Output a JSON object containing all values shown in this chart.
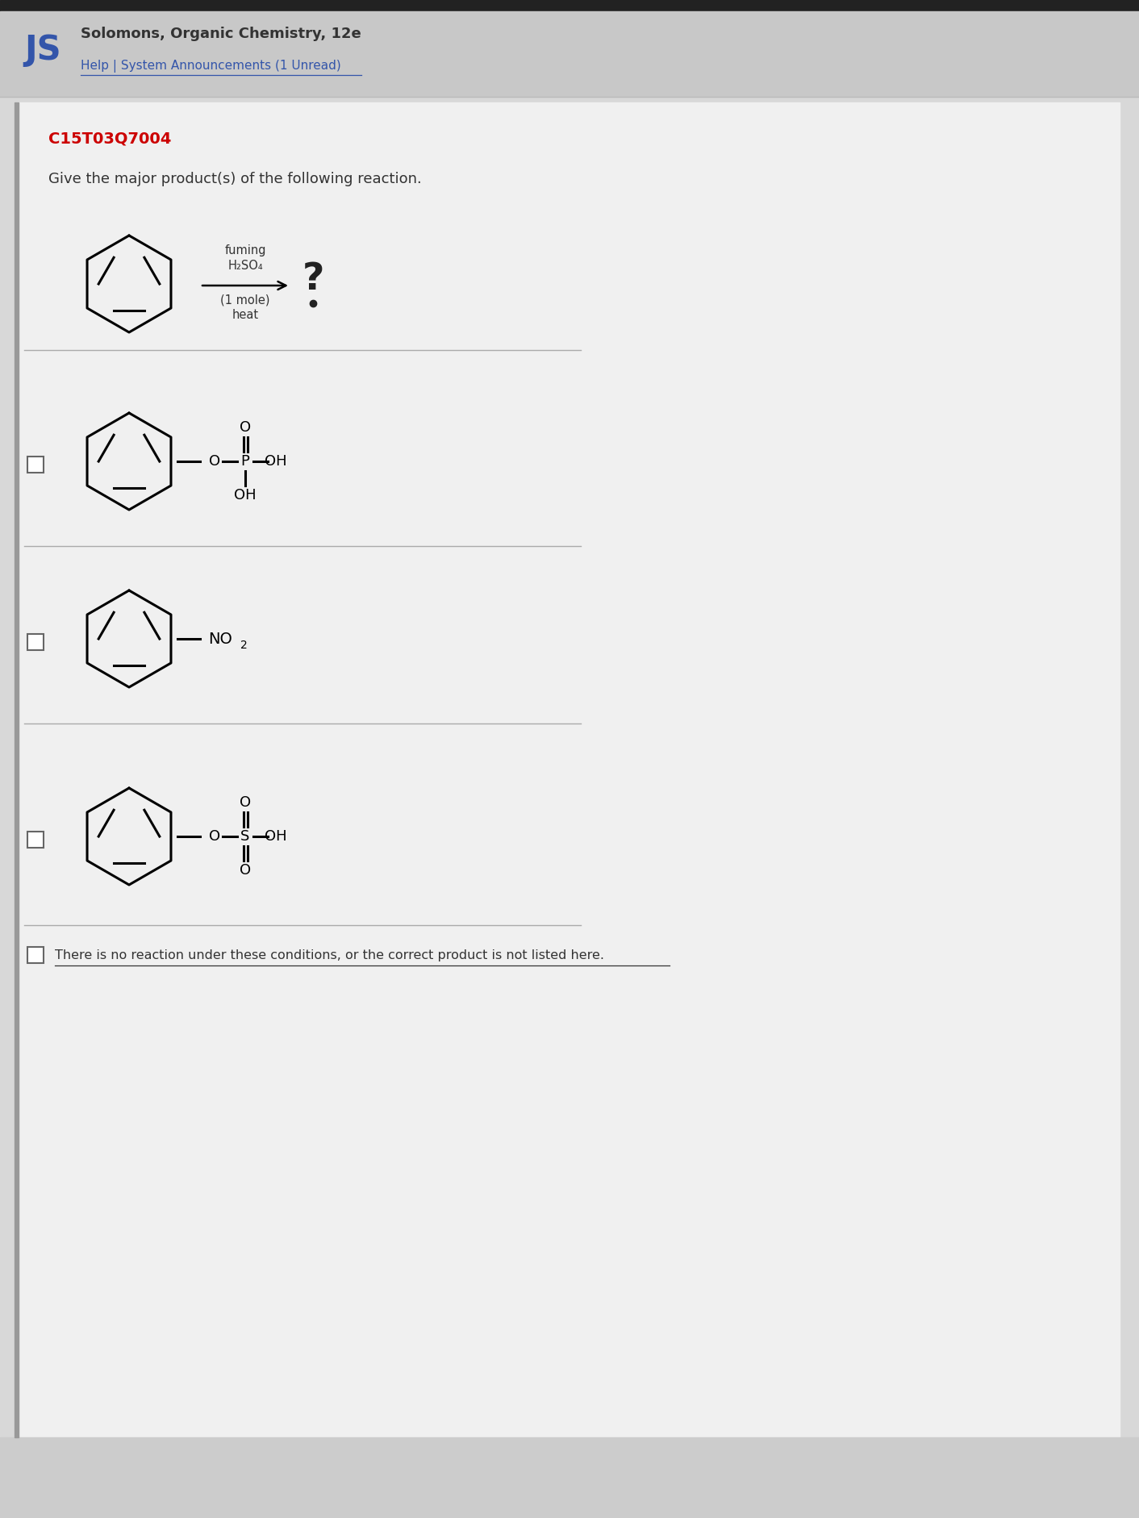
{
  "bg_color": "#d8d8d8",
  "header_bg": "#c8c8c8",
  "content_bg": "#e8e8e8",
  "white_bg": "#f0f0f0",
  "header_text": "Solomons, Organic Chemistry, 12e",
  "header_subtext": "Help | System Announcements (1 Unread)",
  "header_logo": "JS",
  "question_id": "C15T03Q7004",
  "question_text": "Give the major product(s) of the following reaction.",
  "reagent_line1": "fuming",
  "reagent_line2": "H₂SO₄",
  "reagent_line3": "(1 mole)",
  "reagent_line4": "heat",
  "last_option": "There is no reaction under these conditions, or the correct product is not listed here.",
  "text_color": "#333333",
  "red_color": "#cc0000",
  "blue_color": "#3355aa",
  "line_color": "#aaaaaa"
}
